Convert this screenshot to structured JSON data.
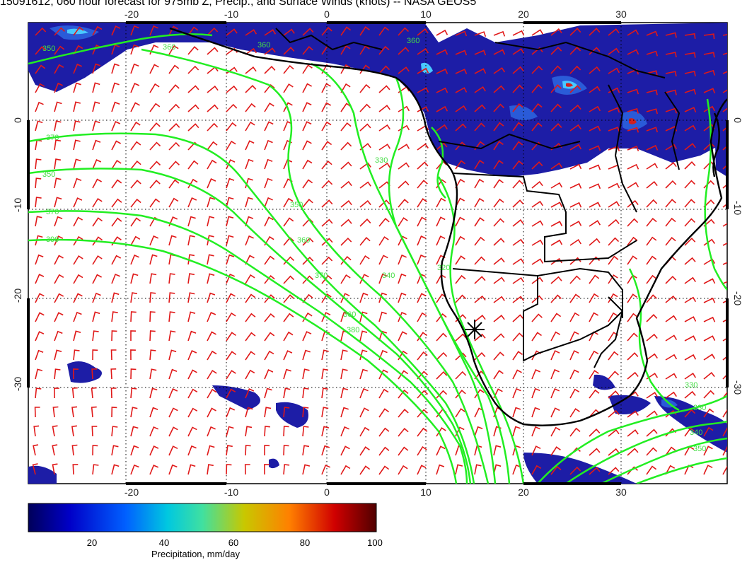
{
  "title": "15091612, 060 hour forecast for 975mb Z, Precip., and Surface Winds (knots) -- NASA GEOS5",
  "map": {
    "lon_range": [
      -30,
      40
    ],
    "lat_range": [
      -40,
      10
    ],
    "lon_ticks": [
      "-20",
      "-10",
      "0",
      "10",
      "20",
      "30"
    ],
    "lat_ticks": [
      "0",
      "-10",
      "-20",
      "-30"
    ],
    "contour_labels": [
      "350",
      "360",
      "360",
      "360",
      "370",
      "350",
      "370",
      "350",
      "360",
      "340",
      "370",
      "360",
      "390",
      "330",
      "320",
      "330",
      "330",
      "340",
      "350",
      "380"
    ],
    "marker": "station-star",
    "colors": {
      "contour": "#22ee22",
      "barb": "#e01818",
      "coast": "#000000",
      "precip_low": "#1d1da6"
    }
  },
  "colorbar": {
    "label": "Precipitation, mm/day",
    "ticks": [
      "20",
      "40",
      "60",
      "80",
      "100"
    ],
    "range": [
      0,
      100
    ],
    "colors": [
      "#00008b",
      "#0000ff",
      "#00bfff",
      "#40e0a0",
      "#c8c800",
      "#ff8000",
      "#d00000",
      "#600000"
    ]
  }
}
